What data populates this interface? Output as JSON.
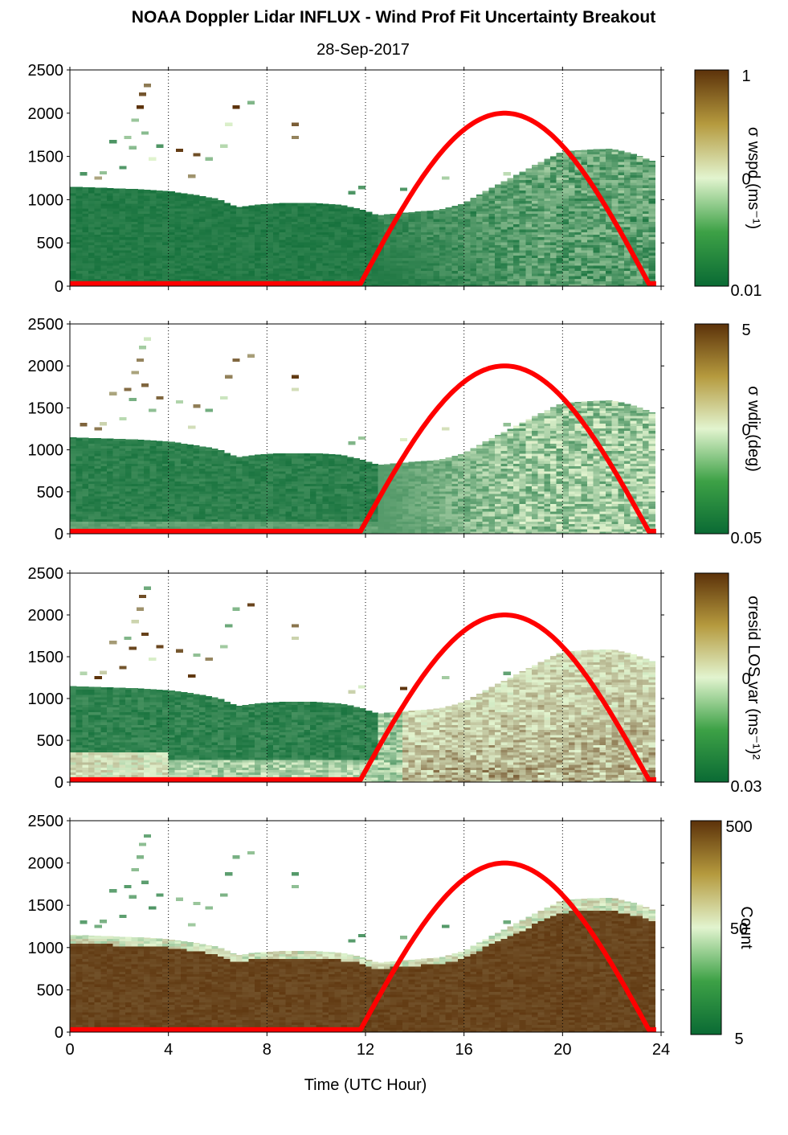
{
  "title": "NOAA Doppler Lidar INFLUX - Wind Prof Fit Uncertainty Breakout",
  "subtitle": "28-Sep-2017",
  "xlabel": "Time (UTC Hour)",
  "colors": {
    "scale_low": "#0a6a34",
    "scale_mid": "#e2f4cf",
    "scale_high": "#5c320a",
    "sun_curve": "#ff0000",
    "dotted_grid": "#000000"
  },
  "chart_data": [
    {
      "type": "heatmap",
      "title": "",
      "xlabel": "",
      "ylabel": "",
      "colorbar_label": "σ wspd (ms⁻¹)",
      "colorbar_ticks": [
        "1",
        "0",
        "0.01"
      ],
      "xlim": [
        0,
        24
      ],
      "ylim": [
        0,
        2500
      ],
      "yticks": [
        0,
        500,
        1000,
        1500,
        2000,
        2500
      ],
      "xticks": [
        0,
        4,
        8,
        12,
        16,
        20,
        24
      ],
      "data_top_height": [
        [
          0,
          1150
        ],
        [
          1,
          1140
        ],
        [
          2,
          1130
        ],
        [
          3,
          1120
        ],
        [
          4,
          1100
        ],
        [
          5,
          1060
        ],
        [
          6,
          1010
        ],
        [
          6.8,
          910
        ],
        [
          7.5,
          940
        ],
        [
          8.5,
          960
        ],
        [
          10,
          960
        ],
        [
          11,
          940
        ],
        [
          11.8,
          890
        ],
        [
          12.5,
          820
        ],
        [
          14,
          860
        ],
        [
          15,
          880
        ],
        [
          16,
          960
        ],
        [
          17,
          1120
        ],
        [
          18,
          1270
        ],
        [
          19,
          1420
        ],
        [
          20,
          1560
        ],
        [
          21,
          1580
        ],
        [
          22,
          1590
        ],
        [
          23,
          1520
        ],
        [
          23.7,
          1440
        ]
      ],
      "sun_curve": {
        "rise_hour": 11.8,
        "set_hour": 23.5,
        "peak_height": 2000
      }
    },
    {
      "type": "heatmap",
      "title": "",
      "xlabel": "",
      "ylabel": "",
      "colorbar_label": "σ wdir (deg)",
      "colorbar_ticks": [
        "5",
        "0",
        "0.05"
      ],
      "xlim": [
        0,
        24
      ],
      "ylim": [
        0,
        2500
      ],
      "yticks": [
        0,
        500,
        1000,
        1500,
        2000,
        2500
      ],
      "xticks": [
        0,
        4,
        8,
        12,
        16,
        20,
        24
      ],
      "data_top_height": [
        [
          0,
          1150
        ],
        [
          1,
          1140
        ],
        [
          2,
          1130
        ],
        [
          3,
          1120
        ],
        [
          4,
          1100
        ],
        [
          5,
          1060
        ],
        [
          6,
          1010
        ],
        [
          6.8,
          910
        ],
        [
          7.5,
          940
        ],
        [
          8.5,
          960
        ],
        [
          10,
          960
        ],
        [
          11,
          940
        ],
        [
          11.8,
          890
        ],
        [
          12.5,
          820
        ],
        [
          14,
          860
        ],
        [
          15,
          880
        ],
        [
          16,
          960
        ],
        [
          17,
          1120
        ],
        [
          18,
          1270
        ],
        [
          19,
          1420
        ],
        [
          20,
          1560
        ],
        [
          21,
          1580
        ],
        [
          22,
          1590
        ],
        [
          23,
          1520
        ],
        [
          23.7,
          1440
        ]
      ],
      "sun_curve": {
        "rise_hour": 11.8,
        "set_hour": 23.5,
        "peak_height": 2000
      }
    },
    {
      "type": "heatmap",
      "title": "",
      "xlabel": "",
      "ylabel": "",
      "colorbar_label": "σresid LOS var (ms⁻¹)²",
      "colorbar_ticks": [
        "0",
        "0.03"
      ],
      "xlim": [
        0,
        24
      ],
      "ylim": [
        0,
        2500
      ],
      "yticks": [
        0,
        500,
        1000,
        1500,
        2000,
        2500
      ],
      "xticks": [
        0,
        4,
        8,
        12,
        16,
        20,
        24
      ],
      "data_top_height": [
        [
          0,
          1150
        ],
        [
          1,
          1140
        ],
        [
          2,
          1130
        ],
        [
          3,
          1120
        ],
        [
          4,
          1100
        ],
        [
          5,
          1060
        ],
        [
          6,
          1010
        ],
        [
          6.8,
          910
        ],
        [
          7.5,
          940
        ],
        [
          8.5,
          960
        ],
        [
          10,
          960
        ],
        [
          11,
          940
        ],
        [
          11.8,
          890
        ],
        [
          12.5,
          820
        ],
        [
          14,
          860
        ],
        [
          15,
          880
        ],
        [
          16,
          960
        ],
        [
          17,
          1120
        ],
        [
          18,
          1270
        ],
        [
          19,
          1420
        ],
        [
          20,
          1560
        ],
        [
          21,
          1580
        ],
        [
          22,
          1590
        ],
        [
          23,
          1520
        ],
        [
          23.7,
          1440
        ]
      ],
      "sun_curve": {
        "rise_hour": 11.8,
        "set_hour": 23.5,
        "peak_height": 2000
      }
    },
    {
      "type": "heatmap",
      "title": "",
      "xlabel": "Time (UTC Hour)",
      "ylabel": "",
      "colorbar_label": "Count",
      "colorbar_ticks": [
        "500",
        "50",
        "5"
      ],
      "xlim": [
        0,
        24
      ],
      "ylim": [
        0,
        2500
      ],
      "yticks": [
        0,
        500,
        1000,
        1500,
        2000,
        2500
      ],
      "xticks": [
        0,
        4,
        8,
        12,
        16,
        20,
        24
      ],
      "data_top_height": [
        [
          0,
          1150
        ],
        [
          1,
          1140
        ],
        [
          2,
          1130
        ],
        [
          3,
          1120
        ],
        [
          4,
          1100
        ],
        [
          5,
          1060
        ],
        [
          6,
          1010
        ],
        [
          6.8,
          910
        ],
        [
          7.5,
          940
        ],
        [
          8.5,
          960
        ],
        [
          10,
          960
        ],
        [
          11,
          940
        ],
        [
          11.8,
          890
        ],
        [
          12.5,
          820
        ],
        [
          14,
          860
        ],
        [
          15,
          880
        ],
        [
          16,
          960
        ],
        [
          17,
          1120
        ],
        [
          18,
          1270
        ],
        [
          19,
          1420
        ],
        [
          20,
          1560
        ],
        [
          21,
          1580
        ],
        [
          22,
          1590
        ],
        [
          23,
          1520
        ],
        [
          23.7,
          1440
        ]
      ],
      "sun_curve": {
        "rise_hour": 11.8,
        "set_hour": 23.5,
        "peak_height": 2000
      }
    }
  ]
}
